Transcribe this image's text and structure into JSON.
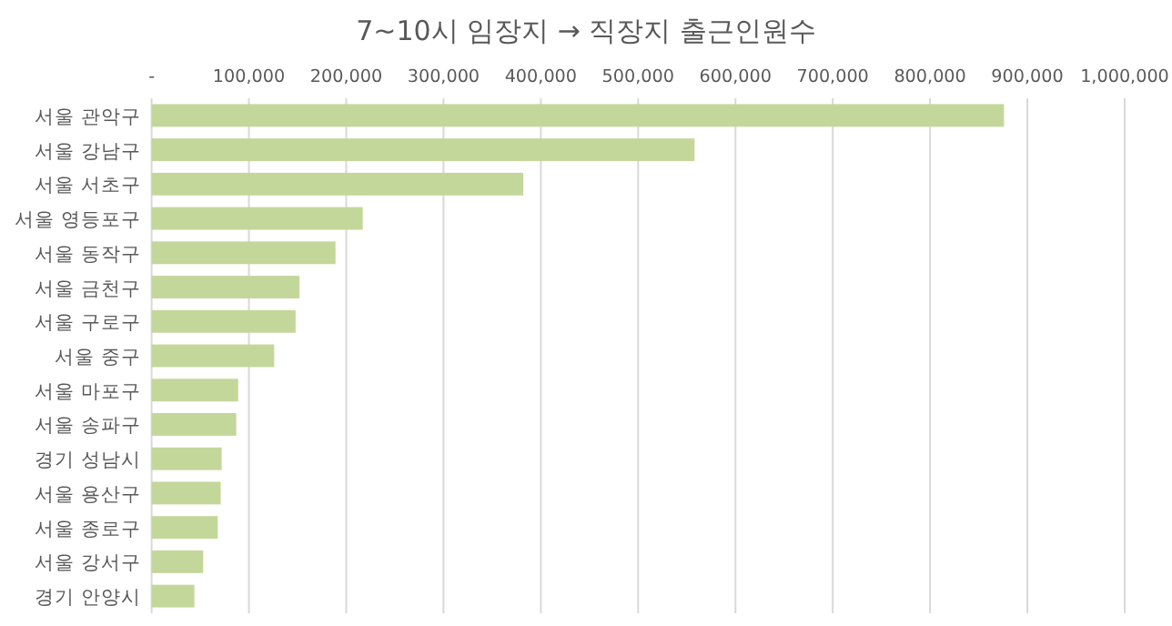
{
  "chart_data": {
    "type": "bar",
    "orientation": "horizontal",
    "title": "7~10시 임장지 → 직장지 출근인원수",
    "categories": [
      "서울 관악구",
      "서울 강남구",
      "서울 서초구",
      "서울 영등포구",
      "서울 동작구",
      "서울 금천구",
      "서울 구로구",
      "서울 중구",
      "서울 마포구",
      "서울 송파구",
      "경기 성남시",
      "서울 용산구",
      "서울 종로구",
      "서울 강서구",
      "경기 안양시"
    ],
    "values": [
      876000,
      558000,
      382000,
      217000,
      189000,
      152000,
      148000,
      126000,
      89000,
      87000,
      72000,
      71000,
      68000,
      53000,
      44000
    ],
    "color": "#c4d79b",
    "xlim": [
      0,
      1000000
    ],
    "xticks": [
      {
        "value": 0,
        "label": "-"
      },
      {
        "value": 100000,
        "label": "100,000"
      },
      {
        "value": 200000,
        "label": "200,000"
      },
      {
        "value": 300000,
        "label": "300,000"
      },
      {
        "value": 400000,
        "label": "400,000"
      },
      {
        "value": 500000,
        "label": "500,000"
      },
      {
        "value": 600000,
        "label": "600,000"
      },
      {
        "value": 700000,
        "label": "700,000"
      },
      {
        "value": 800000,
        "label": "800,000"
      },
      {
        "value": 900000,
        "label": "900,000"
      },
      {
        "value": 1000000,
        "label": "1,000,000"
      }
    ],
    "grid": "x"
  }
}
